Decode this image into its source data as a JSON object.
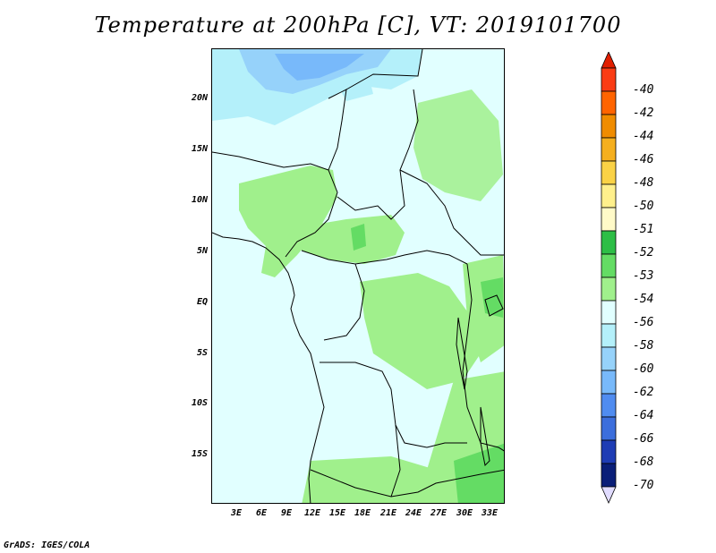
{
  "title": "Temperature at 200hPa [C], VT: 2019101700",
  "footer": "GrADS: IGES/COLA",
  "axes": {
    "lat_labels": [
      "20N",
      "15N",
      "10N",
      "5N",
      "EQ",
      "5S",
      "10S",
      "15S"
    ],
    "lon_labels": [
      "3E",
      "6E",
      "9E",
      "12E",
      "15E",
      "18E",
      "21E",
      "24E",
      "27E",
      "30E",
      "33E"
    ]
  },
  "colorbar": {
    "labels": [
      "-40",
      "-42",
      "-44",
      "-46",
      "-48",
      "-50",
      "-51",
      "-52",
      "-53",
      "-54",
      "-56",
      "-58",
      "-60",
      "-62",
      "-64",
      "-66",
      "-68",
      "-70"
    ],
    "colors": [
      "#fa3c14",
      "#ff6400",
      "#f08c00",
      "#f5af1e",
      "#fad246",
      "#fff08c",
      "#fffac8",
      "#2dbe46",
      "#64dc64",
      "#a0f08c",
      "#e1ffff",
      "#b4f0fa",
      "#96d2fa",
      "#78b9fa",
      "#508cf0",
      "#3c6edc",
      "#1e3cb4",
      "#0a1e78"
    ],
    "top_arrow_color": "#e11e00",
    "bottom_arrow_color": "#e1dcff"
  },
  "map_colors": {
    "ocean_background": "#e1ffff",
    "level_minus53": "#a0f08c",
    "level_minus52": "#64dc64",
    "level_minus56": "#b4f0fa",
    "level_minus58": "#96d2fa",
    "level_minus60": "#78b9fa"
  }
}
